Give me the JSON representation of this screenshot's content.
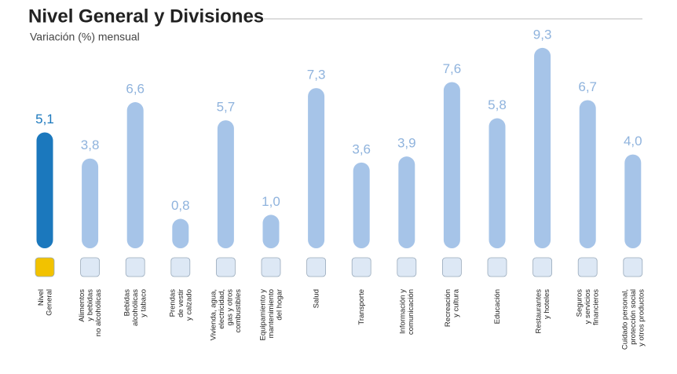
{
  "chart_data": {
    "type": "bar",
    "title": "Nivel General y Divisiones",
    "subtitle": "Variación (%) mensual",
    "categories": [
      "Nivel\nGeneral",
      "Alimentos\ny bebidas\nno alcohólicas",
      "Bebidas\nalcohólicas\ny tabaco",
      "Prendas\nde vestir\ny calzado",
      "Vivienda, agua,\nelectricidad,\ngas y otros\ncombustibles",
      "Equipamiento y\nmantenimiento\ndel hogar",
      "Salud",
      "Transporte",
      "Información y\ncomunicación",
      "Recreación\ny cultura",
      "Educación",
      "Restaurantes\ny hoteles",
      "Seguros\ny servicios\nfinancieros",
      "Cuidado personal,\nprotección social\ny otros productos"
    ],
    "values": [
      5.1,
      3.8,
      6.6,
      0.8,
      5.7,
      1.0,
      7.3,
      3.6,
      3.9,
      7.6,
      5.8,
      9.3,
      6.7,
      4.0
    ],
    "value_labels": [
      "5,1",
      "3,8",
      "6,6",
      "0,8",
      "5,7",
      "1,0",
      "7,3",
      "3,6",
      "3,9",
      "7,6",
      "5,8",
      "9,3",
      "6,7",
      "4,0"
    ],
    "colors": [
      "#1b78bd",
      "#a6c4e8",
      "#a6c4e8",
      "#a6c4e8",
      "#a6c4e8",
      "#a6c4e8",
      "#a6c4e8",
      "#a6c4e8",
      "#a6c4e8",
      "#a6c4e8",
      "#a6c4e8",
      "#a6c4e8",
      "#a6c4e8",
      "#a6c4e8"
    ],
    "label_colors": [
      "#1b78bd",
      "#8fb3dd",
      "#8fb3dd",
      "#8fb3dd",
      "#8fb3dd",
      "#8fb3dd",
      "#8fb3dd",
      "#8fb3dd",
      "#8fb3dd",
      "#8fb3dd",
      "#8fb3dd",
      "#8fb3dd",
      "#8fb3dd",
      "#8fb3dd"
    ]
  }
}
